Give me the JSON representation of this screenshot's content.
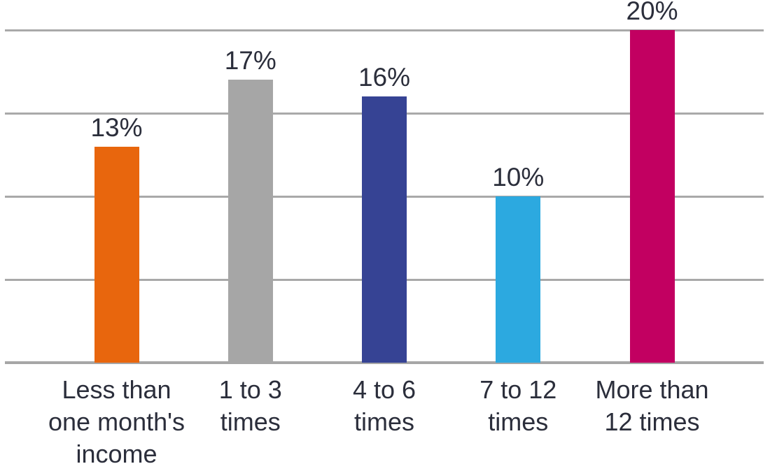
{
  "chart_data": {
    "type": "bar",
    "title": "",
    "xlabel": "",
    "ylabel": "",
    "categories": [
      "Less than\none month's\nincome",
      "1 to 3\ntimes",
      "4 to 6\ntimes",
      "7 to 12\ntimes",
      "More than\n12 times"
    ],
    "values": [
      13,
      17,
      16,
      10,
      20
    ],
    "unit": "%",
    "data_labels": [
      "13%",
      "17%",
      "16%",
      "10%",
      "20%"
    ],
    "bar_colors": [
      "#E8660D",
      "#A6A6A6",
      "#364394",
      "#2CA9E0",
      "#C20061"
    ],
    "ylim": [
      0,
      20
    ],
    "gridline_values": [
      5,
      10,
      15,
      20
    ],
    "grid": "horizontal",
    "y_tick_labels_visible": false,
    "legend_position": "none",
    "colors": {
      "grid_line": "#A9A9A9",
      "axis_line": "#A6A6A6",
      "label_text": "#2B2E3B",
      "background": "#FFFFFF"
    }
  }
}
